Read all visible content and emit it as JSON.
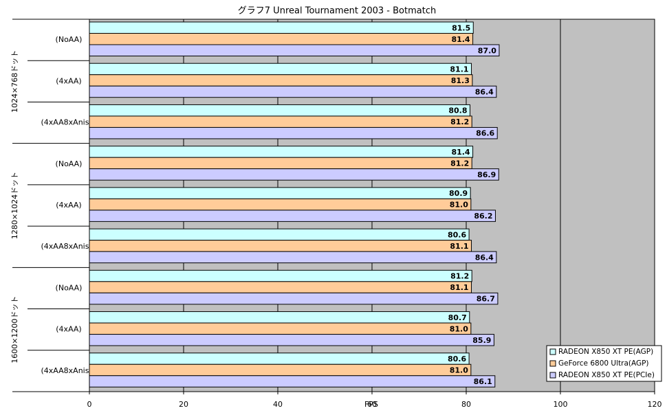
{
  "chart_data": {
    "type": "hbar",
    "title": "グラフ7  Unreal Tournament 2003 - Botmatch",
    "x_label": "FPS",
    "category_groups": [
      {
        "name": "1024×768ドット",
        "categories": [
          "(NoAA)",
          "(4xAA)",
          "(4xAA8xAniso)"
        ]
      },
      {
        "name": "1280×1024ドット",
        "categories": [
          "(NoAA)",
          "(4xAA)",
          "(4xAA8xAniso)"
        ]
      },
      {
        "name": "1600×1200ドット",
        "categories": [
          "(NoAA)",
          "(4xAA)",
          "(4xAA8xAniso)"
        ]
      }
    ],
    "series": [
      {
        "name": "RADEON X850 XT PE(AGP)",
        "color": "#ccffff",
        "values": [
          81.5,
          81.1,
          80.8,
          81.4,
          80.9,
          80.6,
          81.2,
          80.7,
          80.6
        ],
        "value_labels": [
          "81.5",
          "81.1",
          "80.8",
          "81.4",
          "80.9",
          "80.6",
          "81.2",
          "80.7",
          "80.6"
        ]
      },
      {
        "name": "GeForce 6800 Ultra(AGP)",
        "color": "#ffcc99",
        "values": [
          81.4,
          81.3,
          81.2,
          81.2,
          81,
          81.1,
          81.1,
          81,
          81
        ],
        "value_labels": [
          "81.4",
          "81.3",
          "81.2",
          "81.2",
          "81.0",
          "81.1",
          "81.1",
          "81.0",
          "81.0"
        ]
      },
      {
        "name": "RADEON X850 XT PE(PCIe)",
        "color": "#ccccff",
        "values": [
          87,
          86.4,
          86.6,
          86.9,
          86.2,
          86.4,
          86.7,
          85.9,
          86.1
        ],
        "value_labels": [
          "87.0",
          "86.4",
          "86.6",
          "86.9",
          "86.2",
          "86.4",
          "86.7",
          "85.9",
          "86.1"
        ]
      }
    ],
    "xlim": [
      0,
      120
    ],
    "xticks": [
      0,
      20,
      40,
      60,
      80,
      100,
      120
    ],
    "grid": true,
    "legend": "lower right",
    "background": "#c0c0c0"
  }
}
